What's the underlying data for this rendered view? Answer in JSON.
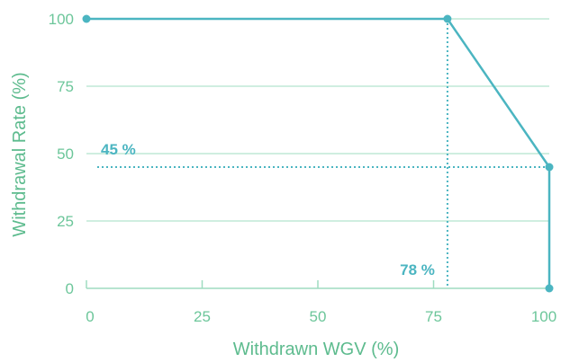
{
  "colors": {
    "line": "#4bb5c1",
    "axis_text": "#5dbb8e",
    "tick_text": "#6cc69a",
    "grid": "#9fdcc0",
    "annotation": "#4bb5c1",
    "background": "#ffffff"
  },
  "chart_data": {
    "type": "line",
    "title": "",
    "xlabel": "Withdrawn WGV (%)",
    "ylabel": "Withdrawal Rate (%)",
    "xlim": [
      0,
      100
    ],
    "ylim": [
      0,
      100
    ],
    "x_ticks": [
      0,
      25,
      50,
      75,
      100
    ],
    "y_ticks": [
      0,
      25,
      50,
      75,
      100
    ],
    "grid": "horizontal",
    "series": [
      {
        "points": [
          [
            0,
            100
          ],
          [
            78,
            100
          ],
          [
            100,
            45
          ],
          [
            100,
            0
          ]
        ]
      }
    ],
    "reference_lines": [
      {
        "axis": "y",
        "value": 45,
        "label": "45 %"
      },
      {
        "axis": "x",
        "value": 78,
        "label": "78 %"
      }
    ]
  }
}
